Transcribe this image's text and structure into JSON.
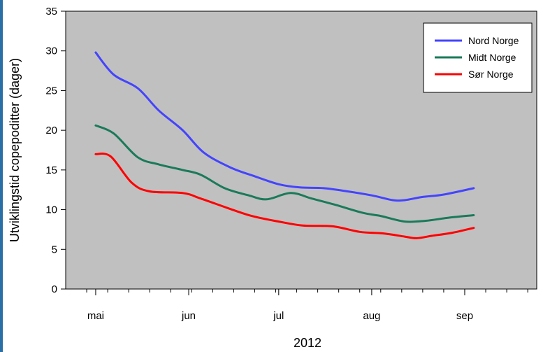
{
  "chart_data": {
    "type": "line",
    "xlabel": "2012",
    "ylabel": "Utviklingstid copepoditter (dager)",
    "ylim": [
      0,
      35
    ],
    "yticks": [
      0,
      5,
      10,
      15,
      20,
      25,
      30,
      35
    ],
    "xlim": [
      "2012-04-21",
      "2012-09-25"
    ],
    "xticks": [
      {
        "date": "2012-05-01",
        "label": "mai"
      },
      {
        "date": "2012-06-01",
        "label": "jun"
      },
      {
        "date": "2012-07-01",
        "label": "jul"
      },
      {
        "date": "2012-08-01",
        "label": "aug"
      },
      {
        "date": "2012-09-01",
        "label": "sep"
      }
    ],
    "grid": false,
    "legend_position": "top-right",
    "background": "#c0c0c0",
    "series": [
      {
        "name": "Nord Norge",
        "color": "#4444ff",
        "points": [
          [
            "2012-05-01",
            29.8
          ],
          [
            "2012-05-07",
            27.0
          ],
          [
            "2012-05-15",
            25.3
          ],
          [
            "2012-05-22",
            22.5
          ],
          [
            "2012-05-30",
            20.0
          ],
          [
            "2012-06-06",
            17.2
          ],
          [
            "2012-06-15",
            15.3
          ],
          [
            "2012-06-23",
            14.2
          ],
          [
            "2012-07-01",
            13.2
          ],
          [
            "2012-07-08",
            12.8
          ],
          [
            "2012-07-16",
            12.7
          ],
          [
            "2012-07-24",
            12.3
          ],
          [
            "2012-08-01",
            11.8
          ],
          [
            "2012-08-08",
            11.2
          ],
          [
            "2012-08-12",
            11.2
          ],
          [
            "2012-08-18",
            11.6
          ],
          [
            "2012-08-25",
            11.9
          ],
          [
            "2012-09-04",
            12.7
          ]
        ]
      },
      {
        "name": "Midt Norge",
        "color": "#1a7a5a",
        "points": [
          [
            "2012-05-01",
            20.6
          ],
          [
            "2012-05-07",
            19.6
          ],
          [
            "2012-05-15",
            16.6
          ],
          [
            "2012-05-22",
            15.7
          ],
          [
            "2012-05-30",
            15.0
          ],
          [
            "2012-06-05",
            14.4
          ],
          [
            "2012-06-13",
            12.7
          ],
          [
            "2012-06-21",
            11.8
          ],
          [
            "2012-06-27",
            11.3
          ],
          [
            "2012-07-05",
            12.1
          ],
          [
            "2012-07-12",
            11.4
          ],
          [
            "2012-07-20",
            10.6
          ],
          [
            "2012-07-29",
            9.6
          ],
          [
            "2012-08-04",
            9.2
          ],
          [
            "2012-08-12",
            8.5
          ],
          [
            "2012-08-19",
            8.6
          ],
          [
            "2012-08-27",
            9.0
          ],
          [
            "2012-09-04",
            9.3
          ]
        ]
      },
      {
        "name": "Sør Norge",
        "color": "#ff0000",
        "points": [
          [
            "2012-05-01",
            17.0
          ],
          [
            "2012-05-06",
            16.7
          ],
          [
            "2012-05-13",
            13.4
          ],
          [
            "2012-05-19",
            12.3
          ],
          [
            "2012-05-30",
            12.1
          ],
          [
            "2012-06-05",
            11.4
          ],
          [
            "2012-06-14",
            10.2
          ],
          [
            "2012-06-22",
            9.2
          ],
          [
            "2012-07-01",
            8.5
          ],
          [
            "2012-07-09",
            8.0
          ],
          [
            "2012-07-19",
            7.9
          ],
          [
            "2012-07-28",
            7.2
          ],
          [
            "2012-08-05",
            7.0
          ],
          [
            "2012-08-12",
            6.6
          ],
          [
            "2012-08-16",
            6.4
          ],
          [
            "2012-08-21",
            6.7
          ],
          [
            "2012-08-28",
            7.1
          ],
          [
            "2012-09-04",
            7.7
          ]
        ]
      }
    ]
  }
}
